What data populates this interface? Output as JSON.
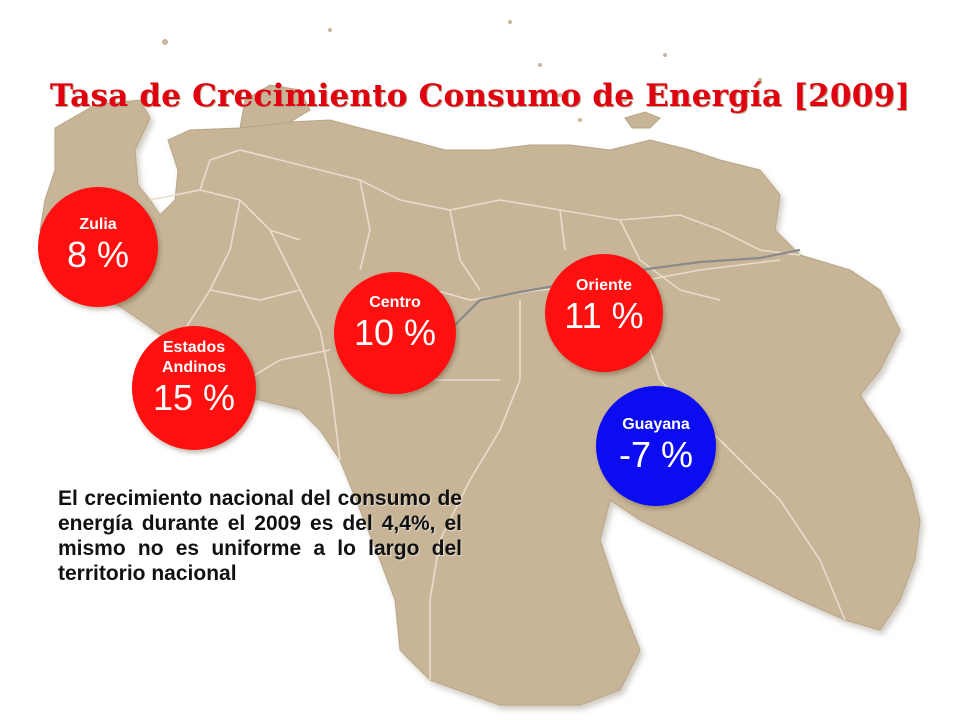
{
  "title": "Tasa de Crecimiento Consumo de Energía [2009]",
  "regions": [
    {
      "id": "zulia",
      "label": "Zulia",
      "value": "8 %",
      "color": "#ff1010"
    },
    {
      "id": "andinos",
      "label_line1": "Estados",
      "label_line2": "Andinos",
      "value": "15 %",
      "color": "#ff1010"
    },
    {
      "id": "centro",
      "label": "Centro",
      "value": "10 %",
      "color": "#ff1010"
    },
    {
      "id": "oriente",
      "label": "Oriente",
      "value": "11 %",
      "color": "#ff1010"
    },
    {
      "id": "guayana",
      "label": "Guayana",
      "value": "-7 %",
      "color": "#0c0cf2"
    }
  ],
  "note": "El crecimiento nacional del consumo de energía durante el 2009 es del 4,4%, el mismo no es uniforme a lo largo del territorio nacional",
  "colors": {
    "land": "#c8b598",
    "border": "#e8dccb",
    "river": "#8a8a8a",
    "title": "#e0000f"
  }
}
